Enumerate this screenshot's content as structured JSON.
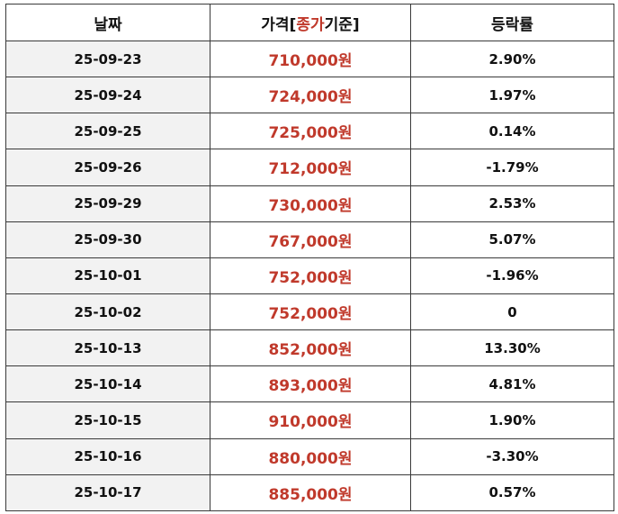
{
  "table": {
    "headers": {
      "date": "날짜",
      "price_prefix": "가격[",
      "price_highlight": "종가",
      "price_suffix": "기준]",
      "change": "등락률"
    },
    "rows": [
      {
        "date": "25-09-23",
        "price": "710,000원",
        "change": "2.90%"
      },
      {
        "date": "25-09-24",
        "price": "724,000원",
        "change": "1.97%"
      },
      {
        "date": "25-09-25",
        "price": "725,000원",
        "change": "0.14%"
      },
      {
        "date": "25-09-26",
        "price": "712,000원",
        "change": "-1.79%"
      },
      {
        "date": "25-09-29",
        "price": "730,000원",
        "change": "2.53%"
      },
      {
        "date": "25-09-30",
        "price": "767,000원",
        "change": "5.07%"
      },
      {
        "date": "25-10-01",
        "price": "752,000원",
        "change": "-1.96%"
      },
      {
        "date": "25-10-02",
        "price": "752,000원",
        "change": "0"
      },
      {
        "date": "25-10-13",
        "price": "852,000원",
        "change": "13.30%"
      },
      {
        "date": "25-10-14",
        "price": "893,000원",
        "change": "4.81%"
      },
      {
        "date": "25-10-15",
        "price": "910,000원",
        "change": "1.90%"
      },
      {
        "date": "25-10-16",
        "price": "880,000원",
        "change": "-3.30%"
      },
      {
        "date": "25-10-17",
        "price": "885,000원",
        "change": "0.57%"
      }
    ]
  },
  "colors": {
    "price_text": "#c0392b",
    "date_cell_bg": "#f2f2f2",
    "border": "#3a3a3a"
  }
}
